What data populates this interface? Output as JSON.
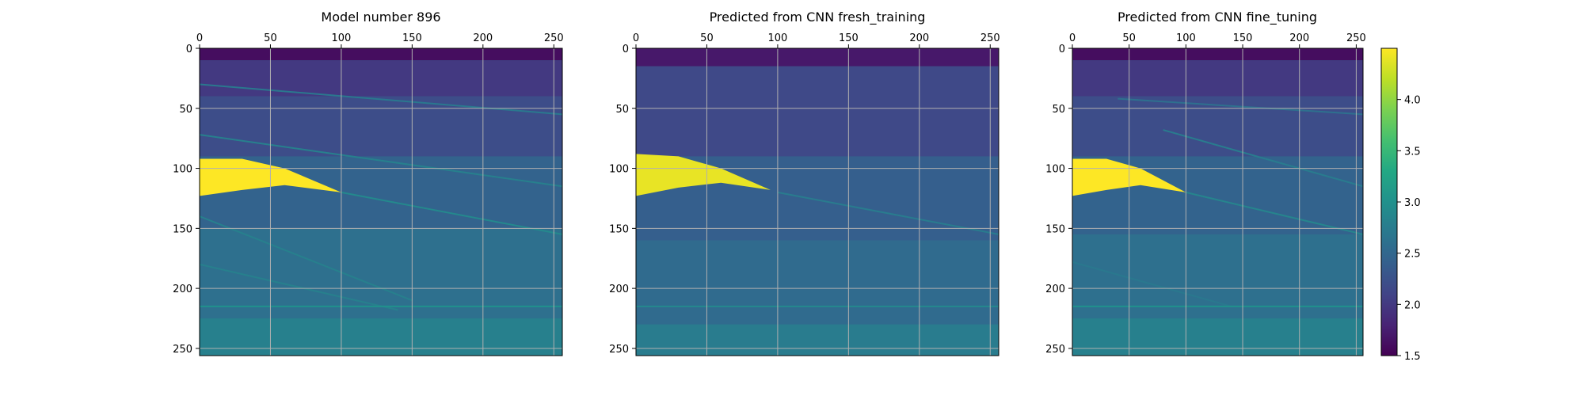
{
  "chart_data": [
    {
      "type": "heatmap",
      "title": "Model number 896",
      "xlabel": "",
      "ylabel": "",
      "xlim": [
        0,
        256
      ],
      "ylim": [
        256,
        0
      ],
      "xticks": [
        "0",
        "50",
        "100",
        "150",
        "200",
        "250"
      ],
      "yticks": [
        "0",
        "50",
        "100",
        "150",
        "200",
        "250"
      ],
      "grid": true,
      "xaxis_position": "top",
      "background_value": 2.45,
      "features": [
        {
          "kind": "band",
          "y0": 0,
          "y1": 10,
          "value": 1.6
        },
        {
          "kind": "band",
          "y0": 10,
          "y1": 40,
          "value": 2.0
        },
        {
          "kind": "band",
          "y0": 40,
          "y1": 90,
          "value": 2.2
        },
        {
          "kind": "band",
          "y0": 150,
          "y1": 256,
          "value": 2.6
        },
        {
          "kind": "band",
          "y0": 225,
          "y1": 256,
          "value": 2.8
        },
        {
          "kind": "line",
          "points": [
            [
              0,
              30
            ],
            [
              256,
              55
            ]
          ],
          "value": 2.7
        },
        {
          "kind": "line",
          "points": [
            [
              0,
              72
            ],
            [
              256,
              115
            ]
          ],
          "value": 2.8
        },
        {
          "kind": "line",
          "points": [
            [
              100,
              120
            ],
            [
              256,
              155
            ]
          ],
          "value": 2.9
        },
        {
          "kind": "line",
          "points": [
            [
              0,
              140
            ],
            [
              150,
              210
            ]
          ],
          "value": 2.8
        },
        {
          "kind": "line",
          "points": [
            [
              0,
              180
            ],
            [
              140,
              218
            ]
          ],
          "value": 2.8
        },
        {
          "kind": "line",
          "points": [
            [
              0,
              215
            ],
            [
              256,
              215
            ]
          ],
          "value": 3.0
        },
        {
          "kind": "salt",
          "top": [
            [
              0,
              92
            ],
            [
              30,
              92
            ],
            [
              60,
              100
            ],
            [
              100,
              120
            ]
          ],
          "bottom": [
            [
              100,
              120
            ],
            [
              60,
              114
            ],
            [
              30,
              118
            ],
            [
              0,
              123
            ]
          ],
          "value": 4.5
        }
      ]
    },
    {
      "type": "heatmap",
      "title": "Predicted from CNN fresh_training",
      "xlabel": "",
      "ylabel": "",
      "xlim": [
        0,
        256
      ],
      "ylim": [
        256,
        0
      ],
      "xticks": [
        "0",
        "50",
        "100",
        "150",
        "200",
        "250"
      ],
      "yticks": [
        "0",
        "50",
        "100",
        "150",
        "200",
        "250"
      ],
      "grid": true,
      "xaxis_position": "top",
      "background_value": 2.4,
      "features": [
        {
          "kind": "band",
          "y0": 0,
          "y1": 15,
          "value": 1.7
        },
        {
          "kind": "band",
          "y0": 15,
          "y1": 90,
          "value": 2.15
        },
        {
          "kind": "band",
          "y0": 160,
          "y1": 256,
          "value": 2.55
        },
        {
          "kind": "band",
          "y0": 230,
          "y1": 256,
          "value": 2.75
        },
        {
          "kind": "line",
          "points": [
            [
              100,
              120
            ],
            [
              256,
              155
            ]
          ],
          "value": 2.75
        },
        {
          "kind": "line",
          "points": [
            [
              0,
              215
            ],
            [
              256,
              215
            ]
          ],
          "value": 2.9
        },
        {
          "kind": "salt",
          "top": [
            [
              0,
              88
            ],
            [
              30,
              90
            ],
            [
              60,
              100
            ],
            [
              95,
              118
            ]
          ],
          "bottom": [
            [
              95,
              118
            ],
            [
              60,
              112
            ],
            [
              30,
              116
            ],
            [
              0,
              123
            ]
          ],
          "value": 4.4
        }
      ]
    },
    {
      "type": "heatmap",
      "title": "Predicted from CNN fine_tuning",
      "xlabel": "",
      "ylabel": "",
      "xlim": [
        0,
        256
      ],
      "ylim": [
        256,
        0
      ],
      "xticks": [
        "0",
        "50",
        "100",
        "150",
        "200",
        "250"
      ],
      "yticks": [
        "0",
        "50",
        "100",
        "150",
        "200",
        "250"
      ],
      "grid": true,
      "xaxis_position": "top",
      "background_value": 2.45,
      "features": [
        {
          "kind": "band",
          "y0": 0,
          "y1": 10,
          "value": 1.6
        },
        {
          "kind": "band",
          "y0": 10,
          "y1": 40,
          "value": 2.0
        },
        {
          "kind": "band",
          "y0": 40,
          "y1": 90,
          "value": 2.2
        },
        {
          "kind": "band",
          "y0": 155,
          "y1": 256,
          "value": 2.6
        },
        {
          "kind": "band",
          "y0": 225,
          "y1": 256,
          "value": 2.8
        },
        {
          "kind": "line",
          "points": [
            [
              40,
              42
            ],
            [
              256,
              55
            ]
          ],
          "value": 2.6
        },
        {
          "kind": "line",
          "points": [
            [
              80,
              68
            ],
            [
              256,
              115
            ]
          ],
          "value": 2.75
        },
        {
          "kind": "line",
          "points": [
            [
              100,
              120
            ],
            [
              256,
              155
            ]
          ],
          "value": 2.85
        },
        {
          "kind": "line",
          "points": [
            [
              0,
              178
            ],
            [
              140,
              215
            ]
          ],
          "value": 2.7
        },
        {
          "kind": "line",
          "points": [
            [
              0,
              215
            ],
            [
              256,
              215
            ]
          ],
          "value": 3.0
        },
        {
          "kind": "salt",
          "top": [
            [
              0,
              92
            ],
            [
              30,
              92
            ],
            [
              60,
              100
            ],
            [
              100,
              120
            ]
          ],
          "bottom": [
            [
              100,
              120
            ],
            [
              60,
              114
            ],
            [
              30,
              118
            ],
            [
              0,
              123
            ]
          ],
          "value": 4.5
        }
      ]
    }
  ],
  "colorbar": {
    "colormap": "viridis",
    "min": 1.5,
    "max": 4.5,
    "ticks": [
      "4.0",
      "3.5",
      "3.0",
      "2.5",
      "2.0",
      "1.5"
    ]
  }
}
